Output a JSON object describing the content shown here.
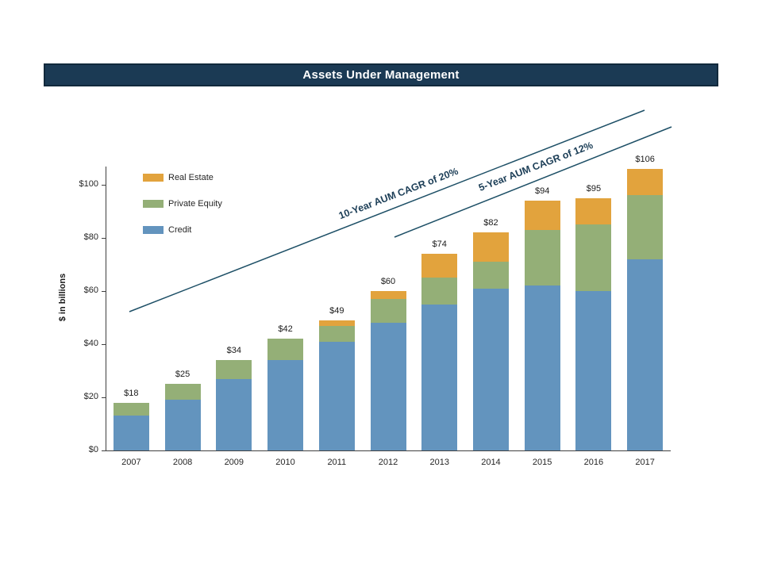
{
  "title": "Assets Under Management",
  "chart_data": {
    "type": "bar",
    "stacked": true,
    "title": "Assets Under Management",
    "ylabel": "$ in billions",
    "xlabel": "",
    "ylim": [
      0,
      100
    ],
    "grid": false,
    "legend_position": "top-left inside plot",
    "categories": [
      "2007",
      "2008",
      "2009",
      "2010",
      "2011",
      "2012",
      "2013",
      "2014",
      "2015",
      "2016",
      "2017"
    ],
    "series": [
      {
        "name": "Credit",
        "color": "#6394be",
        "values": [
          13,
          19,
          27,
          34,
          41,
          48,
          55,
          61,
          62,
          60,
          72
        ]
      },
      {
        "name": "Private Equity",
        "color": "#94af77",
        "values": [
          5,
          6,
          7,
          8,
          6,
          9,
          10,
          10,
          21,
          25,
          24
        ]
      },
      {
        "name": "Real Estate",
        "color": "#e2a33d",
        "values": [
          0,
          0,
          0,
          0,
          2,
          3,
          9,
          11,
          11,
          10,
          10
        ]
      }
    ],
    "totals_labels": [
      "$18",
      "$25",
      "$34",
      "$42",
      "$49",
      "$60",
      "$74",
      "$82",
      "$94",
      "$95",
      "$106"
    ],
    "y_ticks": [
      "$0",
      "$20",
      "$40",
      "$60",
      "$80",
      "$100"
    ],
    "y_tick_values": [
      0,
      20,
      40,
      60,
      80,
      100
    ],
    "legend": [
      {
        "label": "Real Estate",
        "color": "#e2a33d"
      },
      {
        "label": "Private Equity",
        "color": "#94af77"
      },
      {
        "label": "Credit",
        "color": "#6394be"
      }
    ],
    "annotations": [
      {
        "text": "10-Year AUM CAGR of 20%"
      },
      {
        "text": "5-Year AUM CAGR of 12%"
      }
    ]
  }
}
